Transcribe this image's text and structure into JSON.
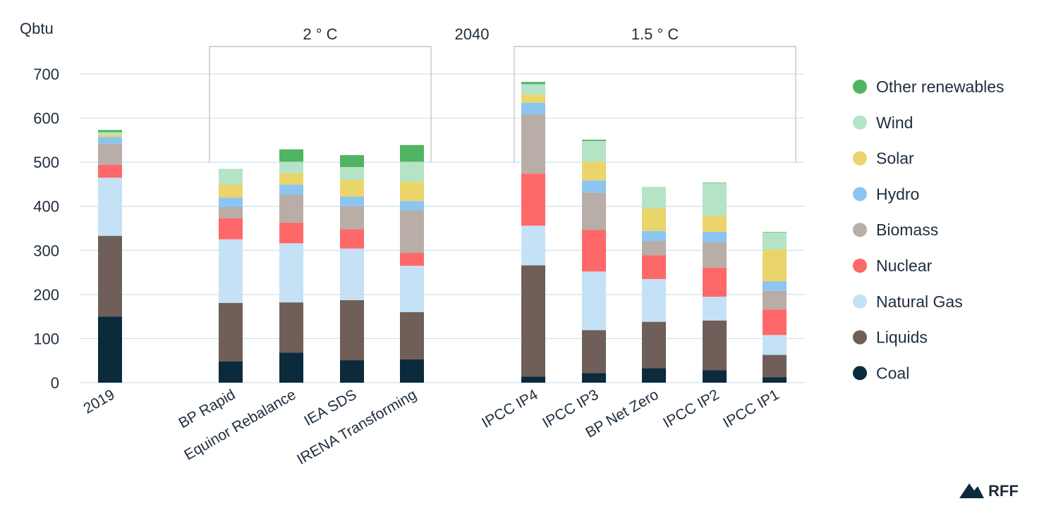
{
  "chart_data": {
    "type": "bar",
    "stacked": true,
    "ylabel": "Qbtu",
    "ylim": [
      0,
      700
    ],
    "yticks": [
      0,
      100,
      200,
      300,
      400,
      500,
      600,
      700
    ],
    "grid": true,
    "legend_position": "right",
    "group_labels": [
      {
        "text": "2 ° C",
        "covers": [
          "BP Rapid",
          "Equinor Rebalance",
          "IEA SDS",
          "IRENA Transforming"
        ]
      },
      {
        "text": "2040",
        "covers": []
      },
      {
        "text": "1.5 ° C",
        "covers": [
          "IPCC IP4",
          "IPCC IP3",
          "BP Net Zero",
          "IPCC IP2",
          "IPCC IP1"
        ]
      }
    ],
    "categories": [
      "2019",
      "BP Rapid",
      "Equinor Rebalance",
      "IEA SDS",
      "IRENA Transforming",
      "IPCC IP4",
      "IPCC IP3",
      "BP Net Zero",
      "IPCC IP2",
      "IPCC IP1"
    ],
    "series": [
      {
        "name": "Coal",
        "color": "#0b2a3c",
        "values": [
          150,
          48,
          68,
          51,
          53,
          14,
          22,
          33,
          28,
          12
        ]
      },
      {
        "name": "Liquids",
        "color": "#6f5f58",
        "values": [
          183,
          133,
          114,
          136,
          107,
          252,
          97,
          105,
          113,
          51
        ]
      },
      {
        "name": "Natural Gas",
        "color": "#c5e1f6",
        "values": [
          132,
          144,
          134,
          117,
          105,
          90,
          133,
          97,
          54,
          45
        ]
      },
      {
        "name": "Nuclear",
        "color": "#ff6868",
        "values": [
          29,
          48,
          47,
          44,
          29,
          118,
          94,
          54,
          66,
          58
        ]
      },
      {
        "name": "Biomass",
        "color": "#b8ada7",
        "values": [
          48,
          25,
          63,
          52,
          96,
          134,
          85,
          32,
          57,
          42
        ]
      },
      {
        "name": "Hydro",
        "color": "#8cc5ef",
        "values": [
          15,
          22,
          23,
          22,
          22,
          27,
          28,
          23,
          24,
          22
        ]
      },
      {
        "name": "Solar",
        "color": "#ebd46a",
        "values": [
          5,
          29,
          26,
          38,
          44,
          18,
          42,
          51,
          36,
          72
        ]
      },
      {
        "name": "Wind",
        "color": "#b5e3c6",
        "values": [
          6,
          36,
          26,
          29,
          45,
          24,
          47,
          49,
          75,
          39
        ]
      },
      {
        "name": "Other renewables",
        "color": "#4fb562",
        "values": [
          5,
          0,
          28,
          27,
          38,
          5,
          3,
          0,
          1,
          1
        ]
      }
    ]
  },
  "brand": {
    "logo_text": "RFF"
  }
}
